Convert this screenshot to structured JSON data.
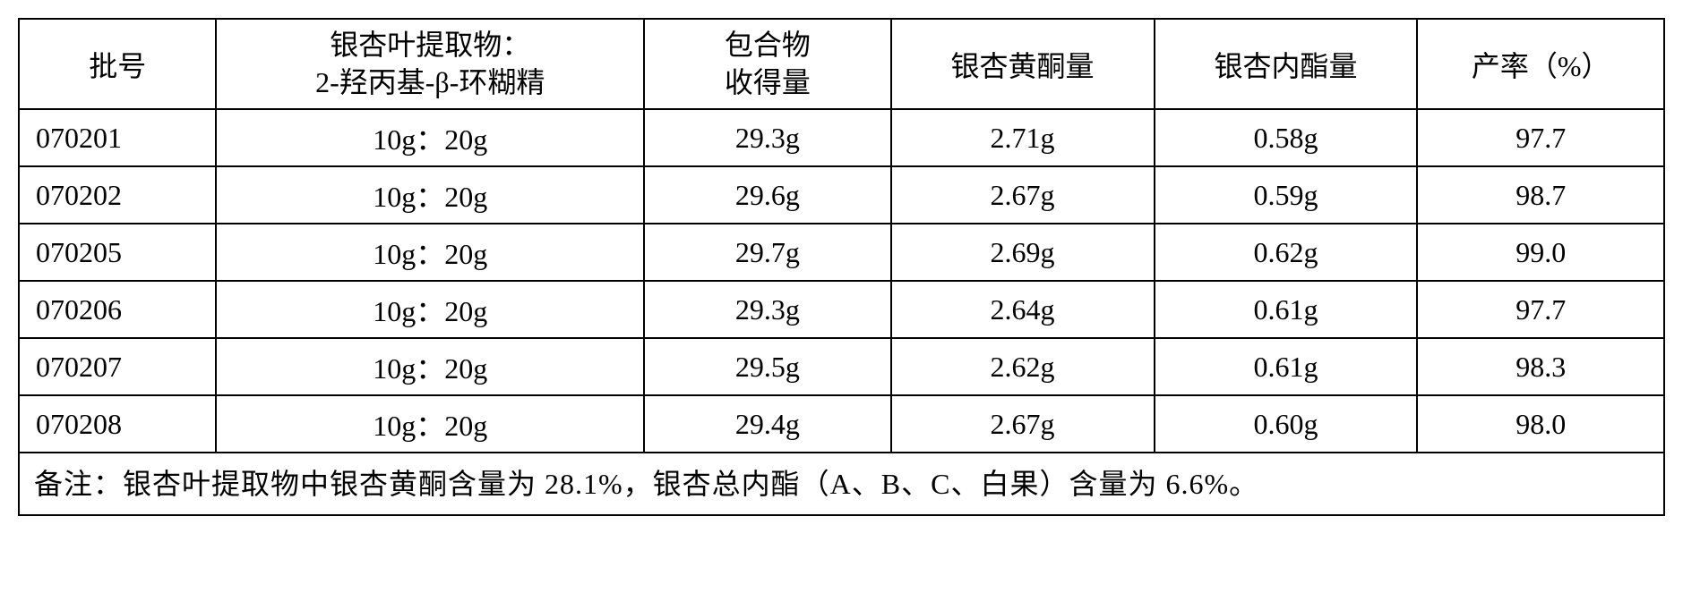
{
  "table": {
    "headers": {
      "batch": "批号",
      "ratio_line1": "银杏叶提取物：",
      "ratio_line2": "2-羟丙基-β-环糊精",
      "yield_line1": "包合物",
      "yield_line2": "收得量",
      "flavone": "银杏黄酮量",
      "lactone": "银杏内酯量",
      "rate": "产率（%）"
    },
    "rows": [
      {
        "batch": "070201",
        "ratio": "10g：20g",
        "yield": "29.3g",
        "flavone": "2.71g",
        "lactone": "0.58g",
        "rate": "97.7"
      },
      {
        "batch": "070202",
        "ratio": "10g：20g",
        "yield": "29.6g",
        "flavone": "2.67g",
        "lactone": "0.59g",
        "rate": "98.7"
      },
      {
        "batch": "070205",
        "ratio": "10g：20g",
        "yield": "29.7g",
        "flavone": "2.69g",
        "lactone": "0.62g",
        "rate": "99.0"
      },
      {
        "batch": "070206",
        "ratio": "10g：20g",
        "yield": "29.3g",
        "flavone": "2.64g",
        "lactone": "0.61g",
        "rate": "97.7"
      },
      {
        "batch": "070207",
        "ratio": "10g：20g",
        "yield": "29.5g",
        "flavone": "2.62g",
        "lactone": "0.61g",
        "rate": "98.3"
      },
      {
        "batch": "070208",
        "ratio": "10g：20g",
        "yield": "29.4g",
        "flavone": "2.67g",
        "lactone": "0.60g",
        "rate": "98.0"
      }
    ],
    "footer": "备注：银杏叶提取物中银杏黄酮含量为 28.1%，银杏总内酯（A、B、C、白果）含量为 6.6%。",
    "styling": {
      "border_color": "#000000",
      "border_width": 2,
      "background_color": "#ffffff",
      "text_color": "#000000",
      "font_size": 32,
      "font_family": "SimSun"
    }
  }
}
